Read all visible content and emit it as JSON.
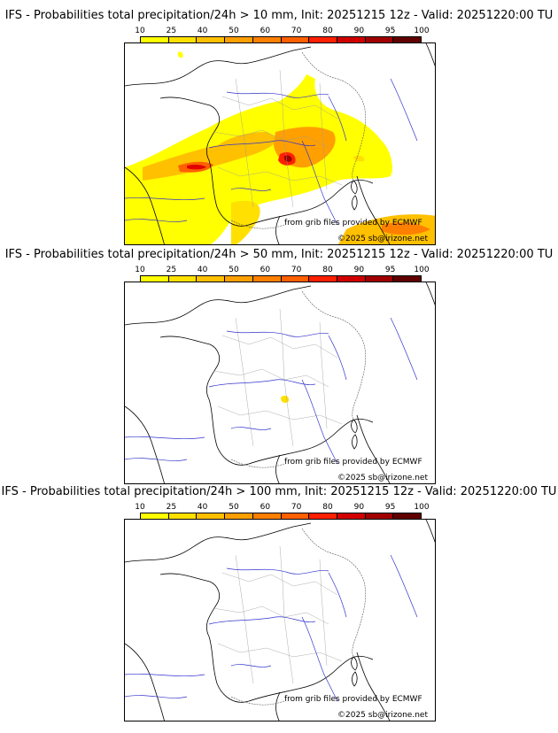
{
  "scale_ticks": [
    "10",
    "25",
    "40",
    "50",
    "60",
    "70",
    "80",
    "90",
    "95",
    "100"
  ],
  "scale_colors": [
    "#ffff00",
    "#ffe000",
    "#ffc000",
    "#ffa000",
    "#ff8000",
    "#ff6000",
    "#ff2000",
    "#d00000",
    "#a00000",
    "#600000"
  ],
  "panels": [
    {
      "title": "IFS - Probabilities total precipitation/24h > 10 mm, Init: 20251215 12z - Valid: 20251220:00 TU",
      "credit_source": "from grib files provided by ECMWF",
      "credit_copy": "©2025 sb@irizone.net",
      "probability_field": "widespread over western and central France, maxima near Loire and Rhône-Alps, Mediterranean south"
    },
    {
      "title": "IFS - Probabilities total precipitation/24h > 50 mm, Init: 20251215 12z - Valid: 20251220:00 TU",
      "credit_source": "from grib files provided by ECMWF",
      "credit_copy": "©2025 sb@irizone.net",
      "probability_field": "small spot near Cévennes"
    },
    {
      "title": "IFS - Probabilities total precipitation/24h > 100 mm, Init: 20251215 12z - Valid: 20251220:00 TU",
      "credit_source": "from grib files provided by ECMWF",
      "credit_copy": "©2025 sb@irizone.net",
      "probability_field": "none"
    }
  ]
}
